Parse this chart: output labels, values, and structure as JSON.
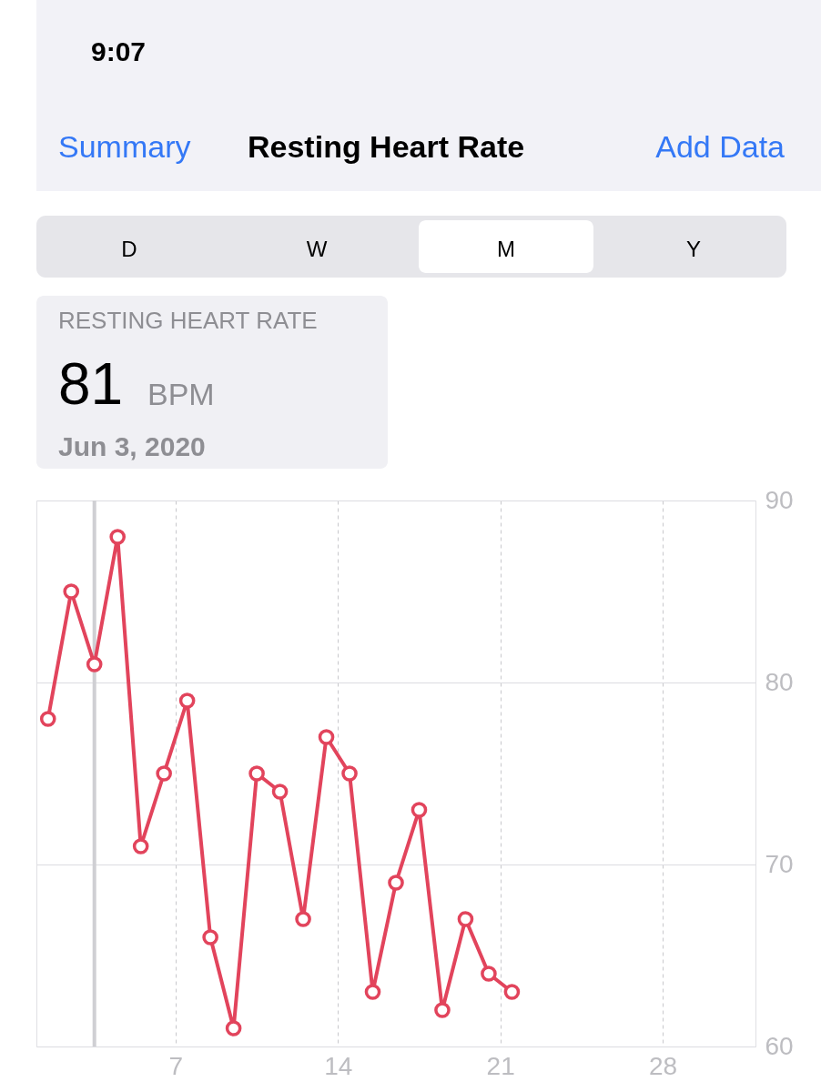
{
  "chart_data": {
    "type": "line",
    "title": "Resting Heart Rate",
    "annotations": [
      "9:07",
      "Summary",
      "Add Data",
      "D",
      "W",
      "M",
      "Y",
      "RESTING HEART RATE",
      "81 BPM",
      "Jun 3, 2020"
    ],
    "x": [
      "2020-06-01T12:00",
      "2020-06-02T12:00",
      "2020-06-03T12:00",
      "2020-06-04T12:00",
      "2020-06-05T12:00",
      "2020-06-06T12:00",
      "2020-06-07T12:00",
      "2020-06-08T12:00",
      "2020-06-09T12:00",
      "2020-06-10T12:00",
      "2020-06-11T12:00",
      "2020-06-12T12:00",
      "2020-06-13T12:00",
      "2020-06-14T12:00",
      "2020-06-15T12:00",
      "2020-06-16T12:00",
      "2020-06-17T12:00",
      "2020-06-18T12:00",
      "2020-06-19T12:00",
      "2020-06-20T12:00",
      "2020-06-21T12:00"
    ],
    "series": [
      {
        "color": "#e2445c",
        "values": [
          78,
          85,
          81,
          88,
          71,
          75,
          79,
          66,
          61,
          75,
          74,
          67,
          77,
          75,
          63,
          69,
          73,
          62,
          67,
          64,
          63
        ]
      }
    ],
    "xlim": [
      "2020-06-01",
      "2020-07-02"
    ],
    "xticks": [
      {
        "value": "2020-06-07",
        "label": "7"
      },
      {
        "value": "2020-06-14",
        "label": "14"
      },
      {
        "value": "2020-06-21",
        "label": "21"
      },
      {
        "value": "2020-06-28",
        "label": "28"
      }
    ],
    "ylim": [
      60,
      90
    ],
    "yticks": [
      60,
      70,
      80,
      90
    ],
    "ref_lines": [
      {
        "axis": "x",
        "value": "2020-06-03T12:00",
        "color": "#cfcfd3"
      }
    ],
    "grid": true,
    "marker": "circle",
    "line_style": "solid"
  }
}
